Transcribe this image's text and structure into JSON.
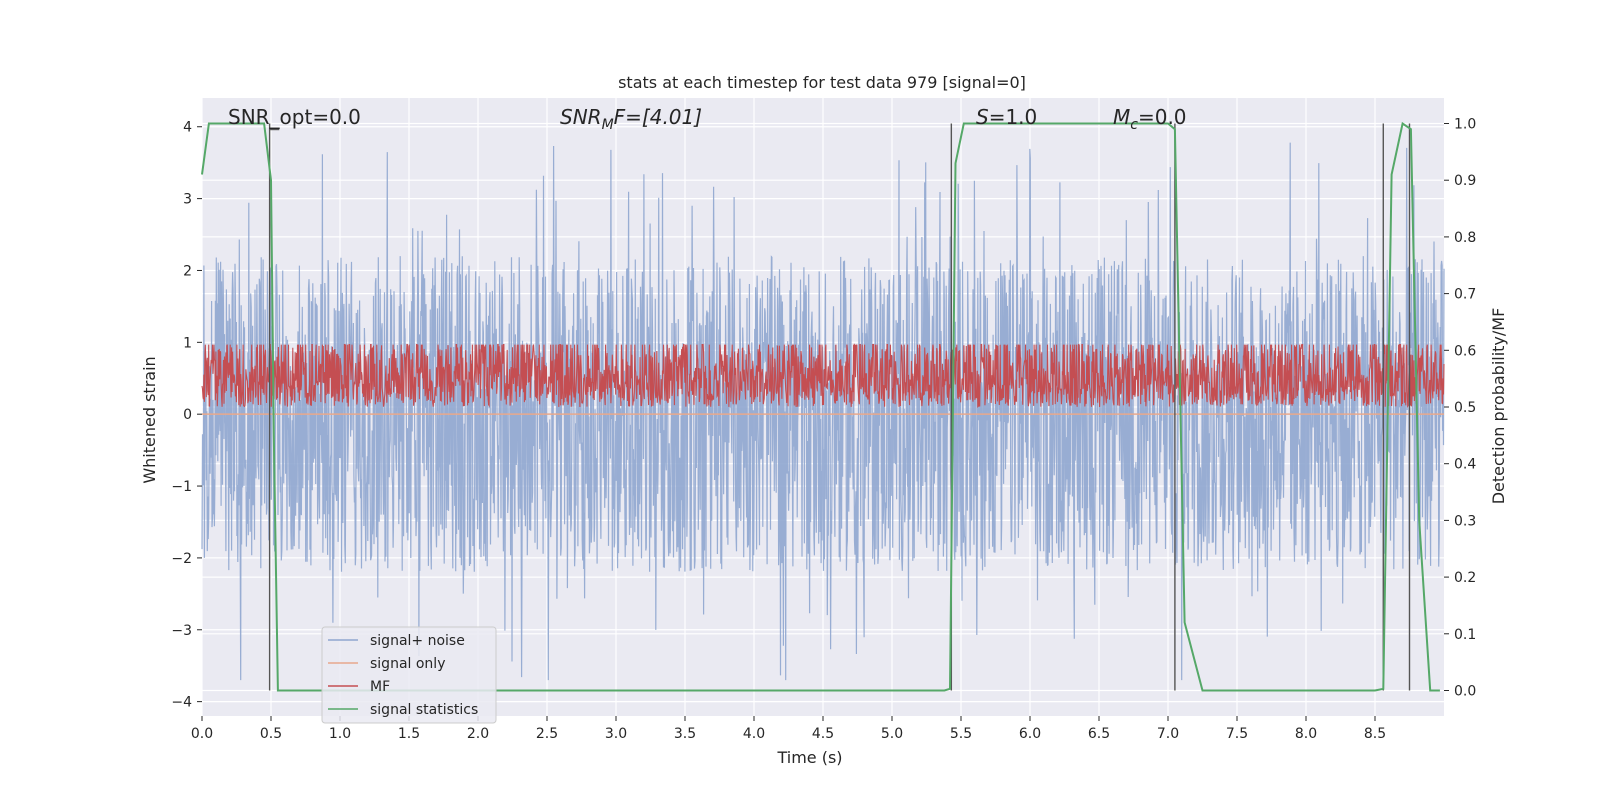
{
  "chart_data": {
    "type": "line",
    "title": "stats at each timestep for test data 979 [signal=0]",
    "xlabel": "Time (s)",
    "ylabel": "Whitened strain",
    "y2label": "Detection probability/MF",
    "xlim": [
      0,
      9
    ],
    "ylim": [
      -4.2,
      4.4
    ],
    "y2lim": [
      -0.045,
      1.045
    ],
    "xticks": [
      "0.0",
      "0.5",
      "1.0",
      "1.5",
      "2.0",
      "2.5",
      "3.0",
      "3.5",
      "4.0",
      "4.5",
      "5.0",
      "5.5",
      "6.0",
      "6.5",
      "7.0",
      "7.5",
      "8.0",
      "8.5"
    ],
    "yticks": [
      "4",
      "3",
      "2",
      "1",
      "0",
      "−1",
      "−2",
      "−3",
      "−4"
    ],
    "y2ticks": [
      "1.0",
      "0.9",
      "0.8",
      "0.7",
      "0.6",
      "0.5",
      "0.4",
      "0.3",
      "0.2",
      "0.1",
      "0.0"
    ],
    "grid": true,
    "legend_position": "lower-left",
    "annotations": {
      "snr_opt": "SNR_opt=0.0",
      "snr_mf_prefix": "SNR",
      "snr_mf_sub": "M",
      "snr_mf_suffix": "F=[4.01]",
      "s_label": "S",
      "s_value": "=1.0",
      "mc_label": "M",
      "mc_sub": "c",
      "mc_value": "=0.0"
    },
    "series": [
      {
        "name": "signal+ noise",
        "color": "#8fa6cf",
        "description_axis": "left",
        "envelope": {
          "upper_typical": 2.0,
          "upper_max": 3.8,
          "lower_typical": -2.0,
          "lower_min": -3.7
        }
      },
      {
        "name": "signal only",
        "color": "#e8a88c",
        "axis": "left",
        "value": 0.0
      },
      {
        "name": "MF",
        "color": "#c44e52",
        "axis": "right",
        "range": [
          0.5,
          0.6
        ]
      },
      {
        "name": "signal statistics",
        "color": "#55a868",
        "axis": "right",
        "x": [
          0.0,
          0.05,
          0.45,
          0.5,
          0.52,
          0.55,
          5.38,
          5.42,
          5.46,
          5.52,
          7.0,
          7.05,
          7.12,
          7.25,
          8.5,
          8.56,
          8.62,
          8.7,
          8.76,
          8.82,
          8.9,
          8.97
        ],
        "y": [
          0.91,
          1.0,
          1.0,
          0.9,
          0.45,
          0.0,
          0.0,
          0.003,
          0.93,
          1.0,
          1.0,
          0.99,
          0.12,
          0.0,
          0.0,
          0.003,
          0.91,
          1.0,
          0.99,
          0.3,
          0.0,
          0.0
        ]
      }
    ],
    "vlines_x": [
      0.49,
      5.43,
      7.05,
      8.56,
      8.75
    ]
  }
}
